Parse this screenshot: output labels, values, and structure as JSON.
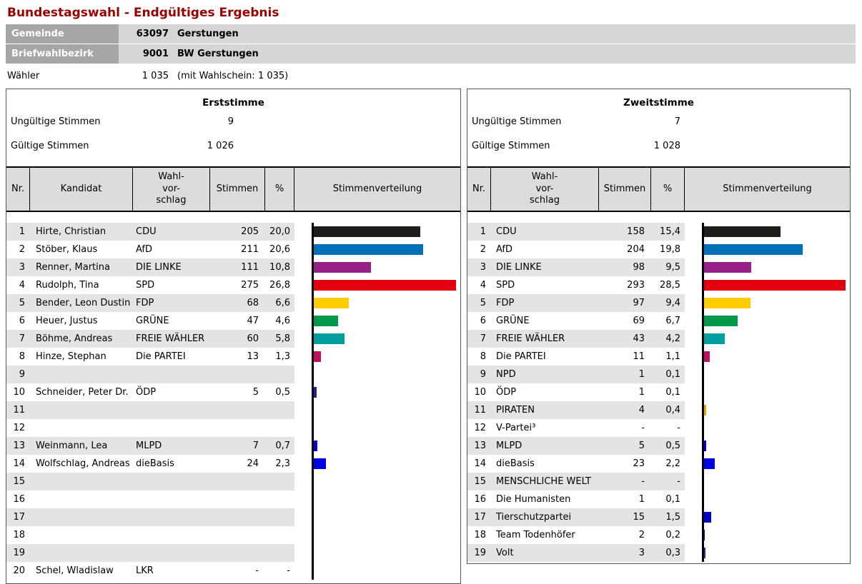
{
  "page": {
    "title": "Bundestagswahl - Endgültiges Ergebnis"
  },
  "header": {
    "rows": [
      {
        "label": "Gemeinde",
        "number": "63097",
        "name": "Gerstungen"
      },
      {
        "label": "Briefwahlbezirk",
        "number": "9001",
        "name": "BW Gerstungen"
      }
    ],
    "waehler": {
      "label": "Wähler",
      "value": "1 035",
      "note": "(mit Wahlschein: 1 035)"
    }
  },
  "panels": [
    {
      "id": "erststimme",
      "title": "Erststimme",
      "invalid_label": "Ungültige Stimmen",
      "invalid_value": "9",
      "valid_label": "Gültige Stimmen",
      "valid_value": "1 026",
      "columns": {
        "nr": "Nr.",
        "kandidat": "Kandidat",
        "wvs": "Wahl-\nvor-\nschlag",
        "stimmen": "Stimmen",
        "pct": "%",
        "chart": "Stimmenverteilung"
      },
      "max_pct": 26.8,
      "rows": [
        {
          "nr": "1",
          "kandidat": "Hirte, Christian",
          "partei": "CDU",
          "stimmen": "205",
          "pct": "20,0",
          "bar_color": "#1d1d1b"
        },
        {
          "nr": "2",
          "kandidat": "Stöber, Klaus",
          "partei": "AfD",
          "stimmen": "211",
          "pct": "20,6",
          "bar_color": "#0070b8"
        },
        {
          "nr": "3",
          "kandidat": "Renner, Martina",
          "partei": "DIE LINKE",
          "stimmen": "111",
          "pct": "10,8",
          "bar_color": "#962085"
        },
        {
          "nr": "4",
          "kandidat": "Rudolph, Tina",
          "partei": "SPD",
          "stimmen": "275",
          "pct": "26,8",
          "bar_color": "#e3000f"
        },
        {
          "nr": "5",
          "kandidat": "Bender, Leon Dustin",
          "partei": "FDP",
          "stimmen": "68",
          "pct": "6,6",
          "bar_color": "#ffcc00"
        },
        {
          "nr": "6",
          "kandidat": "Heuer, Justus",
          "partei": "GRÜNE",
          "stimmen": "47",
          "pct": "4,6",
          "bar_color": "#00984a"
        },
        {
          "nr": "7",
          "kandidat": "Böhme, Andreas",
          "partei": "FREIE WÄHLER",
          "stimmen": "60",
          "pct": "5,8",
          "bar_color": "#009f9f"
        },
        {
          "nr": "8",
          "kandidat": "Hinze, Stephan",
          "partei": "Die PARTEI",
          "stimmen": "13",
          "pct": "1,3",
          "bar_color": "#c01060"
        },
        {
          "nr": "9",
          "kandidat": "",
          "partei": "",
          "stimmen": "",
          "pct": "",
          "bar_color": null
        },
        {
          "nr": "10",
          "kandidat": "Schneider, Peter Dr.",
          "partei": "ÖDP",
          "stimmen": "5",
          "pct": "0,5",
          "bar_color": "#2020a0"
        },
        {
          "nr": "11",
          "kandidat": "",
          "partei": "",
          "stimmen": "",
          "pct": "",
          "bar_color": null
        },
        {
          "nr": "12",
          "kandidat": "",
          "partei": "",
          "stimmen": "",
          "pct": "",
          "bar_color": null
        },
        {
          "nr": "13",
          "kandidat": "Weinmann, Lea",
          "partei": "MLPD",
          "stimmen": "7",
          "pct": "0,7",
          "bar_color": "#0000cc"
        },
        {
          "nr": "14",
          "kandidat": "Wolfschlag, Andreas",
          "partei": "dieBasis",
          "stimmen": "24",
          "pct": "2,3",
          "bar_color": "#0000e6"
        },
        {
          "nr": "15",
          "kandidat": "",
          "partei": "",
          "stimmen": "",
          "pct": "",
          "bar_color": null
        },
        {
          "nr": "16",
          "kandidat": "",
          "partei": "",
          "stimmen": "",
          "pct": "",
          "bar_color": null
        },
        {
          "nr": "17",
          "kandidat": "",
          "partei": "",
          "stimmen": "",
          "pct": "",
          "bar_color": null
        },
        {
          "nr": "18",
          "kandidat": "",
          "partei": "",
          "stimmen": "",
          "pct": "",
          "bar_color": null
        },
        {
          "nr": "19",
          "kandidat": "",
          "partei": "",
          "stimmen": "",
          "pct": "",
          "bar_color": null
        },
        {
          "nr": "20",
          "kandidat": "Schel, Wladislaw",
          "partei": "LKR",
          "stimmen": "-",
          "pct": "-",
          "bar_color": null
        }
      ]
    },
    {
      "id": "zweitstimme",
      "title": "Zweitstimme",
      "invalid_label": "Ungültige Stimmen",
      "invalid_value": "7",
      "valid_label": "Gültige Stimmen",
      "valid_value": "1 028",
      "columns": {
        "nr": "Nr.",
        "wvs": "Wahl-\nvor-\nschlag",
        "stimmen": "Stimmen",
        "pct": "%",
        "chart": "Stimmenverteilung"
      },
      "max_pct": 28.5,
      "rows": [
        {
          "nr": "1",
          "partei": "CDU",
          "stimmen": "158",
          "pct": "15,4",
          "bar_color": "#1d1d1b"
        },
        {
          "nr": "2",
          "partei": "AfD",
          "stimmen": "204",
          "pct": "19,8",
          "bar_color": "#0070b8"
        },
        {
          "nr": "3",
          "partei": "DIE LINKE",
          "stimmen": "98",
          "pct": "9,5",
          "bar_color": "#962085"
        },
        {
          "nr": "4",
          "partei": "SPD",
          "stimmen": "293",
          "pct": "28,5",
          "bar_color": "#e3000f"
        },
        {
          "nr": "5",
          "partei": "FDP",
          "stimmen": "97",
          "pct": "9,4",
          "bar_color": "#ffcc00"
        },
        {
          "nr": "6",
          "partei": "GRÜNE",
          "stimmen": "69",
          "pct": "6,7",
          "bar_color": "#00984a"
        },
        {
          "nr": "7",
          "partei": "FREIE WÄHLER",
          "stimmen": "43",
          "pct": "4,2",
          "bar_color": "#009f9f"
        },
        {
          "nr": "8",
          "partei": "Die PARTEI",
          "stimmen": "11",
          "pct": "1,1",
          "bar_color": "#c01060"
        },
        {
          "nr": "9",
          "partei": "NPD",
          "stimmen": "1",
          "pct": "0,1",
          "bar_color": null
        },
        {
          "nr": "10",
          "partei": "ÖDP",
          "stimmen": "1",
          "pct": "0,1",
          "bar_color": null
        },
        {
          "nr": "11",
          "partei": "PIRATEN",
          "stimmen": "4",
          "pct": "0,4",
          "bar_color": "#efa400"
        },
        {
          "nr": "12",
          "partei": "V-Partei³",
          "stimmen": "-",
          "pct": "-",
          "bar_color": null
        },
        {
          "nr": "13",
          "partei": "MLPD",
          "stimmen": "5",
          "pct": "0,5",
          "bar_color": "#0000cc"
        },
        {
          "nr": "14",
          "partei": "dieBasis",
          "stimmen": "23",
          "pct": "2,2",
          "bar_color": "#0000e6"
        },
        {
          "nr": "15",
          "partei": "MENSCHLICHE WELT",
          "stimmen": "-",
          "pct": "-",
          "bar_color": null
        },
        {
          "nr": "16",
          "partei": "Die Humanisten",
          "stimmen": "1",
          "pct": "0,1",
          "bar_color": null
        },
        {
          "nr": "17",
          "partei": "Tierschutzpartei",
          "stimmen": "15",
          "pct": "1,5",
          "bar_color": "#0000cc"
        },
        {
          "nr": "18",
          "partei": "Team Todenhöfer",
          "stimmen": "2",
          "pct": "0,2",
          "bar_color": "#0000cc"
        },
        {
          "nr": "19",
          "partei": "Volt",
          "stimmen": "3",
          "pct": "0,3",
          "bar_color": "#2828a8"
        }
      ]
    }
  ]
}
